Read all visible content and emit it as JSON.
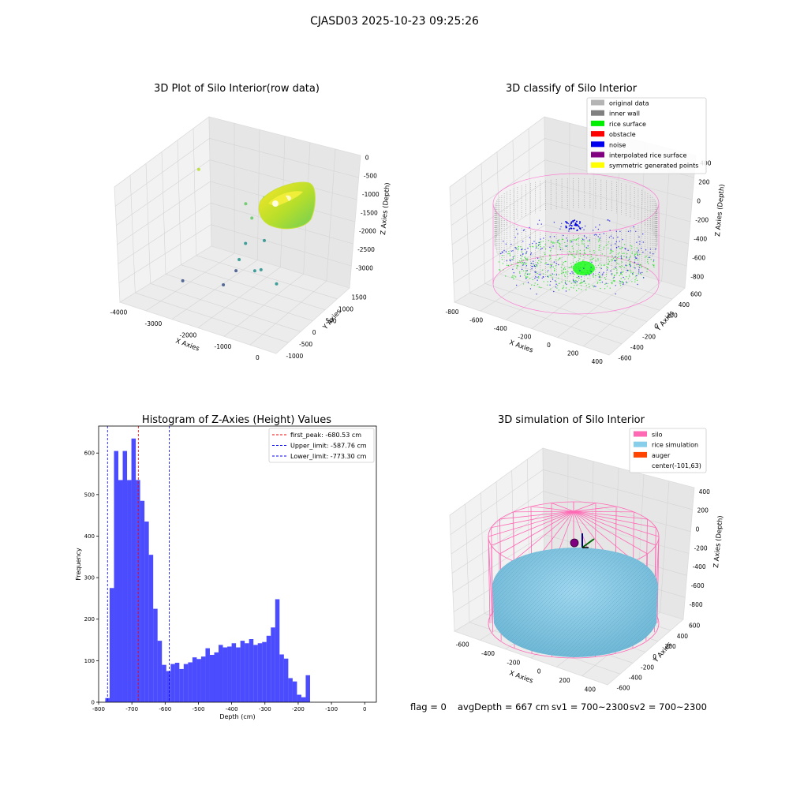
{
  "figure": {
    "suptitle": "CJASD03 2025-10-23 09:25:26",
    "footer": {
      "flag": "flag = 0",
      "avg_depth": "avgDepth = 667 cm",
      "sv1": "sv1 = 700~2300",
      "sv2": "sv2 = 700~2300"
    }
  },
  "chart_data": [
    {
      "type": "scatter",
      "projection": "3d",
      "title": "3D Plot of Silo Interior(row data)",
      "xlabel": "X Axies",
      "ylabel": "Y Axies",
      "zlabel": "Z Axies (Depth)",
      "x_ticks": [
        "-4000",
        "-3000",
        "-2000",
        "-1000",
        "0"
      ],
      "y_ticks": [
        "-1000",
        "-500",
        "0",
        "500",
        "1000",
        "1500"
      ],
      "z_ticks": [
        "0",
        "-500",
        "-1000",
        "-1500",
        "-2000",
        "-2500",
        "-3000"
      ],
      "grid": true,
      "colormap": "viridis",
      "points": [
        {
          "x": -4300,
          "y": 1100,
          "z": -600
        },
        {
          "x": -2900,
          "y": 1200,
          "z": -1300
        },
        {
          "x": -2500,
          "y": 1400,
          "z": -1100
        },
        {
          "x": -2600,
          "y": 1100,
          "z": -1600
        },
        {
          "x": -2400,
          "y": 700,
          "z": -2100
        },
        {
          "x": -2300,
          "y": 400,
          "z": -2400
        },
        {
          "x": -2200,
          "y": 200,
          "z": -2600
        },
        {
          "x": -2000,
          "y": 900,
          "z": -2000
        },
        {
          "x": -1700,
          "y": 300,
          "z": -2500
        },
        {
          "x": -1500,
          "y": 300,
          "z": -2400
        },
        {
          "x": -800,
          "y": 100,
          "z": -2500
        },
        {
          "x": -3600,
          "y": -100,
          "z": -3200
        },
        {
          "x": -2300,
          "y": -100,
          "z": -2900
        }
      ]
    },
    {
      "type": "scatter",
      "projection": "3d",
      "title": "3D classify of Silo Interior",
      "xlabel": "X Axies",
      "ylabel": "Y Axies",
      "zlabel": "Z Axies (Depth)",
      "x_ticks": [
        "-800",
        "-600",
        "-400",
        "-200",
        "0",
        "200",
        "400"
      ],
      "y_ticks": [
        "-600",
        "-400",
        "-200",
        "0",
        "200",
        "400",
        "600"
      ],
      "z_ticks": [
        "400",
        "200",
        "0",
        "-200",
        "-400",
        "-600",
        "-800"
      ],
      "grid": true,
      "legend_position": "top-right",
      "legend": [
        {
          "label": "original data",
          "color": "#b4b4b4"
        },
        {
          "label": "inner wall",
          "color": "#808080"
        },
        {
          "label": "rice surface",
          "color": "#00ee00"
        },
        {
          "label": "obstacle",
          "color": "#ff0000"
        },
        {
          "label": "noise",
          "color": "#0000ee"
        },
        {
          "label": "interpolated rice surface",
          "color": "#800080"
        },
        {
          "label": "symmetric generated points",
          "color": "#ffff00"
        }
      ]
    },
    {
      "type": "bar",
      "title": "Histogram of Z-Axies (Height) Values",
      "xlabel": "Depth (cm)",
      "ylabel": "Frequency",
      "bar_color": "#0000ff",
      "xlim": [
        -800,
        35
      ],
      "ylim": [
        0,
        665
      ],
      "x_ticks": [
        -800,
        -700,
        -600,
        -500,
        -400,
        -300,
        -200,
        -100,
        0
      ],
      "y_ticks": [
        0,
        100,
        200,
        300,
        400,
        500,
        600
      ],
      "bin_start": -780,
      "bin_width": 13.1,
      "values": [
        10,
        275,
        605,
        535,
        605,
        535,
        635,
        535,
        485,
        435,
        355,
        225,
        148,
        90,
        75,
        92,
        95,
        80,
        92,
        96,
        108,
        104,
        110,
        130,
        114,
        120,
        138,
        132,
        134,
        142,
        132,
        148,
        142,
        152,
        138,
        142,
        145,
        160,
        180,
        248,
        115,
        105,
        58,
        50,
        18,
        12,
        65
      ],
      "reference_lines": [
        {
          "label": "first_peak: -680.53 cm",
          "value": -680.53,
          "color": "#ff0000"
        },
        {
          "label": "Upper_limit: -587.76 cm",
          "value": -587.76,
          "color": "#0000ff"
        },
        {
          "label": "Lower_limit: -773.30 cm",
          "value": -773.3,
          "color": "#0000ff"
        }
      ],
      "legend_position": "top-right"
    },
    {
      "type": "scatter",
      "projection": "3d",
      "title": "3D simulation of Silo Interior",
      "xlabel": "X Axies",
      "ylabel": "Y Axies",
      "zlabel": "Z Axies (Depth)",
      "x_ticks": [
        "-600",
        "-400",
        "-200",
        "0",
        "200",
        "400"
      ],
      "y_ticks": [
        "-600",
        "-400",
        "-200",
        "0",
        "200",
        "400",
        "600"
      ],
      "z_ticks": [
        "400",
        "200",
        "0",
        "-200",
        "-400",
        "-600",
        "-800"
      ],
      "grid": true,
      "legend_position": "top-right",
      "legend": [
        {
          "label": "silo",
          "color": "#ff69b4"
        },
        {
          "label": "rice simulation",
          "color": "#87ceeb"
        },
        {
          "label": "auger",
          "color": "#ff4500"
        },
        {
          "label": "center(-101,63)",
          "color": null
        }
      ]
    }
  ]
}
